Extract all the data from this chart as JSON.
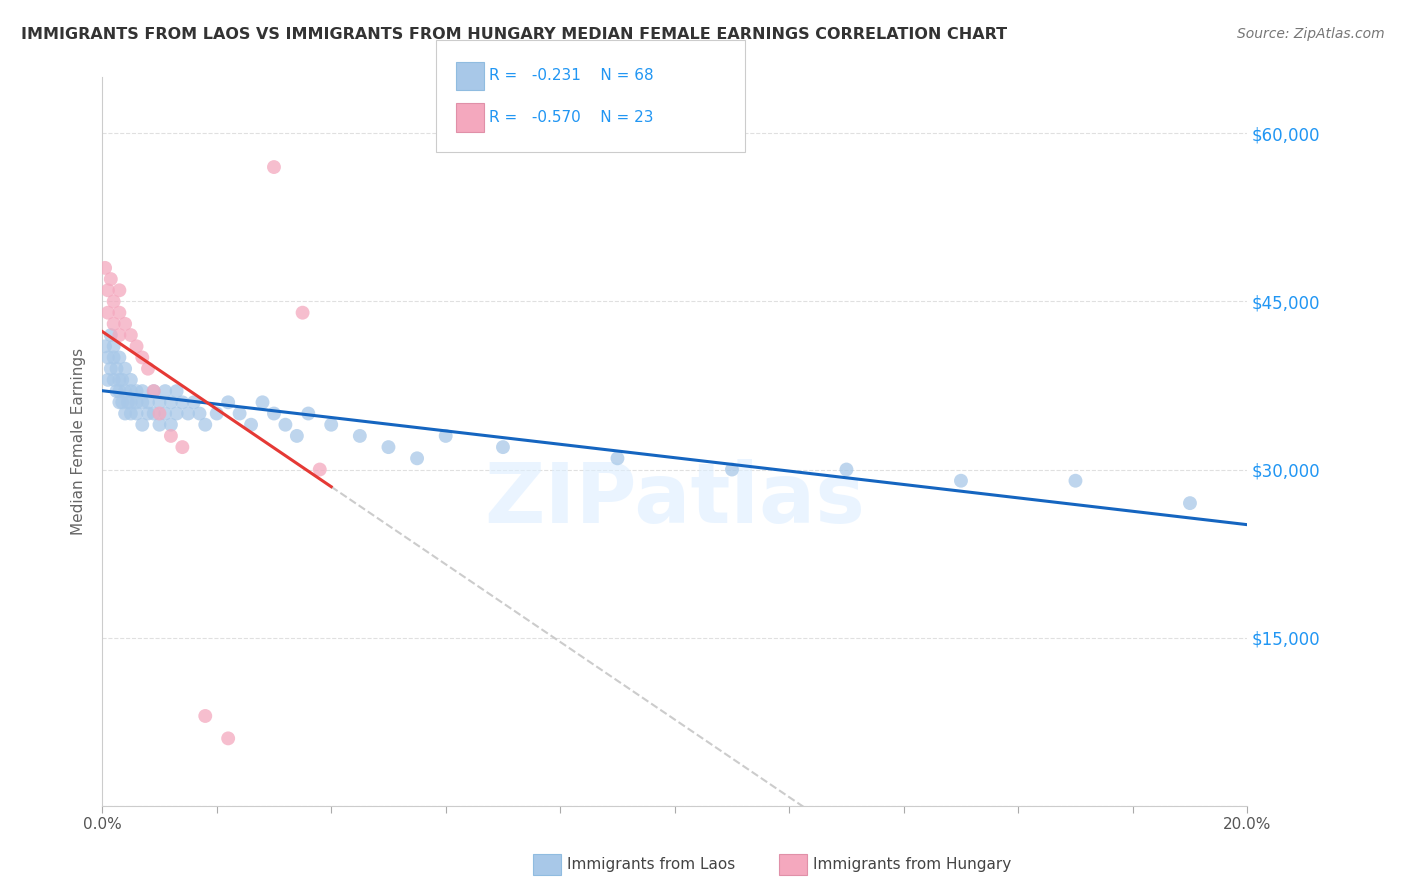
{
  "title": "IMMIGRANTS FROM LAOS VS IMMIGRANTS FROM HUNGARY MEDIAN FEMALE EARNINGS CORRELATION CHART",
  "source": "Source: ZipAtlas.com",
  "ylabel": "Median Female Earnings",
  "yticks": [
    0,
    15000,
    30000,
    45000,
    60000
  ],
  "ytick_labels": [
    "",
    "$15,000",
    "$30,000",
    "$45,000",
    "$60,000"
  ],
  "xmin": 0.0,
  "xmax": 0.2,
  "ymin": 0,
  "ymax": 65000,
  "legend_v1": "-0.231",
  "legend_n1": "N = 68",
  "legend_v2": "-0.570",
  "legend_n2": "N = 23",
  "color_laos": "#a8c8e8",
  "color_hungary": "#f4a8be",
  "color_laos_line": "#1565c0",
  "color_hungary_line": "#e53935",
  "color_gray_dashed": "#cccccc",
  "color_title": "#333333",
  "color_source": "#777777",
  "color_yticklabels": "#2196f3",
  "color_legend_text": "#2196f3",
  "background_color": "#ffffff",
  "grid_color": "#e0e0e0",
  "laos_x": [
    0.0005,
    0.001,
    0.001,
    0.0015,
    0.0015,
    0.002,
    0.002,
    0.002,
    0.0025,
    0.0025,
    0.003,
    0.003,
    0.003,
    0.003,
    0.0035,
    0.0035,
    0.004,
    0.004,
    0.004,
    0.0045,
    0.005,
    0.005,
    0.005,
    0.005,
    0.006,
    0.006,
    0.006,
    0.007,
    0.007,
    0.007,
    0.008,
    0.008,
    0.009,
    0.009,
    0.01,
    0.01,
    0.011,
    0.011,
    0.012,
    0.012,
    0.013,
    0.013,
    0.014,
    0.015,
    0.016,
    0.017,
    0.018,
    0.02,
    0.022,
    0.024,
    0.026,
    0.028,
    0.03,
    0.032,
    0.034,
    0.036,
    0.04,
    0.045,
    0.05,
    0.055,
    0.06,
    0.07,
    0.09,
    0.11,
    0.13,
    0.15,
    0.17,
    0.19
  ],
  "laos_y": [
    41000,
    40000,
    38000,
    42000,
    39000,
    41000,
    38000,
    40000,
    37000,
    39000,
    38000,
    36000,
    40000,
    37000,
    36000,
    38000,
    37000,
    35000,
    39000,
    36000,
    38000,
    35000,
    37000,
    36000,
    37000,
    35000,
    36000,
    36000,
    34000,
    37000,
    35000,
    36000,
    35000,
    37000,
    36000,
    34000,
    35000,
    37000,
    36000,
    34000,
    35000,
    37000,
    36000,
    35000,
    36000,
    35000,
    34000,
    35000,
    36000,
    35000,
    34000,
    36000,
    35000,
    34000,
    33000,
    35000,
    34000,
    33000,
    32000,
    31000,
    33000,
    32000,
    31000,
    30000,
    30000,
    29000,
    29000,
    27000
  ],
  "hungary_x": [
    0.0005,
    0.001,
    0.001,
    0.0015,
    0.002,
    0.002,
    0.003,
    0.003,
    0.003,
    0.004,
    0.005,
    0.006,
    0.007,
    0.008,
    0.009,
    0.01,
    0.012,
    0.014,
    0.018,
    0.022,
    0.03,
    0.035,
    0.038
  ],
  "hungary_y": [
    48000,
    46000,
    44000,
    47000,
    45000,
    43000,
    46000,
    44000,
    42000,
    43000,
    42000,
    41000,
    40000,
    39000,
    37000,
    35000,
    33000,
    32000,
    8000,
    6000,
    57000,
    44000,
    30000
  ]
}
